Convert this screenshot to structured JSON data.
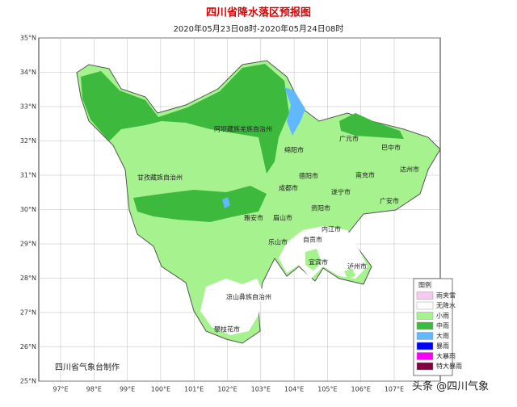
{
  "title": "四川省降水落区预报图",
  "subtitle": "2020年05月23日08时-2020年05月24日08时",
  "lat_labels": [
    "35°N",
    "34°N",
    "33°N",
    "32°N",
    "31°N",
    "30°N",
    "29°N",
    "28°N",
    "27°N",
    "26°N",
    "25°N"
  ],
  "lon_labels": [
    "97°E",
    "98°E",
    "99°E",
    "100°E",
    "101°E",
    "102°E",
    "103°E",
    "104°E",
    "105°E",
    "106°E",
    "107°E"
  ],
  "regions": [
    "阿坝藏族羌族自治州",
    "甘孜藏族自治州",
    "绵阳市",
    "广元市",
    "巴中市",
    "达州市",
    "德阳市",
    "南充市",
    "成都市",
    "遂宁市",
    "广安市",
    "资阳市",
    "雅安市",
    "眉山市",
    "内江市",
    "乐山市",
    "自贡市",
    "宜宾市",
    "泸州市",
    "凉山彝族自治州",
    "攀枝花市"
  ],
  "legend": {
    "title": "图例",
    "items": [
      "雨夹雪",
      "无降水",
      "小雨",
      "中雨",
      "大雨",
      "暴雨",
      "大暴雨",
      "特大暴雨"
    ]
  },
  "credit": "四川省气象台制作",
  "watermark": "头条 @四川气象"
}
